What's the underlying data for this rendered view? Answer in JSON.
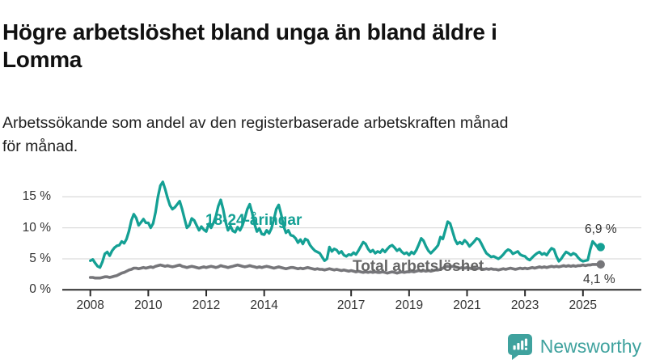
{
  "header": {
    "title": "Högre arbetslöshet bland unga än bland äldre i Lomma",
    "title_lines": [
      "Högre arbetslöshet bland unga än bland äldre i",
      "Lomma"
    ],
    "subtitle_lines": [
      "Arbetssökande som andel av den registerbaserade arbetskraften månad",
      "för månad."
    ]
  },
  "chart_data": {
    "type": "line",
    "title": "Högre arbetslöshet bland unga än bland äldre i Lomma",
    "subtitle": "Arbetssökande som andel av den registerbaserade arbetskraften månad för månad.",
    "unit": "%",
    "x_start": 2008.0,
    "x_step_months": 1,
    "x_ticks": [
      2008,
      2010,
      2012,
      2014,
      2017,
      2019,
      2021,
      2023,
      2025
    ],
    "y_ticks": [
      0,
      5,
      10,
      15
    ],
    "y_tick_labels": [
      "0 %",
      "5 %",
      "10 %",
      "15 %"
    ],
    "ylim": [
      0,
      18
    ],
    "grid": "horizontal",
    "colors": {
      "youth_line": "#14A094",
      "total_line": "#76767A",
      "total_label": "#666666",
      "gridline": "#dcdcdc",
      "axis": "#2b2b2b",
      "text": "#333333"
    },
    "series": [
      {
        "name": "18-24-åringar",
        "end_label": "6,9 %",
        "end_value": 6.9,
        "values": [
          4.7,
          4.9,
          4.3,
          3.8,
          3.6,
          4.5,
          5.8,
          6.1,
          5.5,
          6.3,
          6.8,
          7.1,
          7.2,
          7.8,
          7.5,
          8.2,
          9.5,
          11.2,
          12.2,
          11.6,
          10.4,
          10.9,
          11.4,
          10.8,
          10.8,
          10.0,
          10.7,
          12.5,
          15.0,
          16.8,
          17.4,
          16.2,
          14.8,
          13.6,
          13.0,
          13.3,
          13.8,
          14.3,
          13.0,
          11.5,
          10.0,
          10.4,
          11.5,
          11.2,
          10.4,
          9.6,
          10.2,
          9.7,
          9.4,
          10.6,
          10.0,
          10.8,
          11.9,
          13.5,
          14.5,
          13.0,
          11.0,
          9.6,
          10.3,
          9.5,
          9.3,
          10.1,
          9.6,
          10.4,
          11.6,
          13.0,
          13.8,
          12.4,
          10.6,
          9.4,
          9.9,
          9.0,
          8.9,
          9.6,
          9.1,
          9.9,
          11.3,
          13.0,
          13.7,
          12.2,
          10.3,
          9.2,
          9.6,
          8.8,
          8.7,
          8.3,
          7.6,
          8.1,
          7.4,
          8.2,
          8.0,
          7.2,
          6.7,
          6.3,
          6.1,
          5.9,
          5.3,
          4.7,
          5.0,
          6.9,
          6.2,
          6.6,
          6.4,
          5.9,
          6.2,
          5.6,
          5.4,
          5.7,
          5.6,
          6.0,
          5.7,
          6.3,
          7.0,
          7.7,
          7.4,
          6.6,
          6.1,
          6.4,
          5.9,
          6.2,
          6.0,
          6.5,
          6.1,
          6.6,
          7.0,
          7.2,
          6.8,
          6.3,
          6.6,
          6.1,
          5.8,
          6.0,
          5.6,
          6.1,
          5.8,
          6.4,
          7.3,
          8.3,
          7.9,
          7.0,
          6.3,
          5.9,
          6.3,
          6.7,
          7.2,
          8.5,
          8.2,
          9.6,
          11.0,
          10.7,
          9.4,
          8.1,
          7.4,
          7.7,
          7.4,
          8.0,
          7.6,
          7.0,
          7.4,
          7.8,
          8.3,
          8.1,
          7.4,
          6.6,
          5.9,
          5.6,
          5.3,
          5.4,
          5.2,
          5.0,
          5.3,
          5.7,
          6.2,
          6.5,
          6.3,
          5.8,
          6.0,
          6.2,
          5.7,
          5.5,
          5.4,
          5.0,
          4.8,
          5.2,
          5.6,
          5.9,
          6.1,
          5.7,
          5.9,
          5.6,
          6.2,
          6.7,
          6.5,
          5.4,
          4.6,
          5.0,
          5.6,
          6.1,
          5.9,
          5.6,
          5.9,
          5.7,
          5.2,
          4.8,
          4.6,
          4.7,
          4.8,
          6.5,
          7.8,
          7.4,
          6.9
        ]
      },
      {
        "name": "Total arbetslöshet",
        "end_label": "4,1 %",
        "end_value": 4.1,
        "values": [
          2.0,
          2.0,
          1.9,
          1.9,
          1.9,
          2.0,
          2.1,
          2.1,
          2.0,
          2.1,
          2.2,
          2.3,
          2.5,
          2.7,
          2.8,
          3.0,
          3.2,
          3.3,
          3.5,
          3.5,
          3.4,
          3.5,
          3.6,
          3.5,
          3.6,
          3.7,
          3.6,
          3.8,
          3.9,
          4.0,
          3.9,
          3.8,
          3.9,
          3.8,
          3.7,
          3.8,
          3.9,
          4.0,
          3.8,
          3.7,
          3.6,
          3.7,
          3.8,
          3.7,
          3.6,
          3.5,
          3.6,
          3.7,
          3.6,
          3.7,
          3.8,
          3.7,
          3.6,
          3.7,
          3.9,
          3.8,
          3.7,
          3.6,
          3.7,
          3.8,
          3.9,
          4.0,
          3.9,
          3.8,
          3.7,
          3.8,
          3.9,
          3.8,
          3.7,
          3.6,
          3.7,
          3.6,
          3.7,
          3.8,
          3.7,
          3.6,
          3.5,
          3.6,
          3.7,
          3.6,
          3.5,
          3.4,
          3.5,
          3.6,
          3.6,
          3.5,
          3.4,
          3.5,
          3.4,
          3.5,
          3.6,
          3.5,
          3.4,
          3.3,
          3.4,
          3.3,
          3.3,
          3.2,
          3.3,
          3.4,
          3.3,
          3.2,
          3.3,
          3.2,
          3.1,
          3.2,
          3.1,
          3.0,
          3.1,
          3.0,
          2.9,
          3.0,
          2.9,
          2.8,
          2.9,
          2.8,
          2.9,
          2.8,
          2.9,
          2.8,
          2.8,
          2.9,
          2.8,
          2.7,
          2.8,
          2.9,
          2.8,
          2.7,
          2.8,
          2.9,
          2.8,
          2.9,
          2.9,
          3.0,
          2.9,
          3.0,
          3.1,
          3.0,
          3.1,
          3.0,
          3.1,
          3.0,
          3.1,
          3.2,
          3.2,
          3.3,
          3.5,
          3.7,
          3.8,
          3.7,
          3.8,
          3.7,
          3.6,
          3.5,
          3.6,
          3.5,
          3.6,
          3.5,
          3.4,
          3.5,
          3.4,
          3.5,
          3.4,
          3.3,
          3.4,
          3.3,
          3.4,
          3.3,
          3.3,
          3.2,
          3.3,
          3.4,
          3.3,
          3.4,
          3.5,
          3.4,
          3.3,
          3.4,
          3.5,
          3.4,
          3.5,
          3.4,
          3.5,
          3.6,
          3.5,
          3.6,
          3.7,
          3.6,
          3.7,
          3.6,
          3.7,
          3.8,
          3.7,
          3.8,
          3.7,
          3.8,
          3.9,
          3.8,
          3.9,
          3.8,
          3.9,
          3.8,
          3.9,
          3.9,
          4.0,
          3.9,
          4.0,
          4.0,
          4.1,
          4.1,
          4.1
        ]
      }
    ]
  },
  "footer": {
    "brand": "Newsworthy",
    "logo_color": "#3FA29E"
  }
}
